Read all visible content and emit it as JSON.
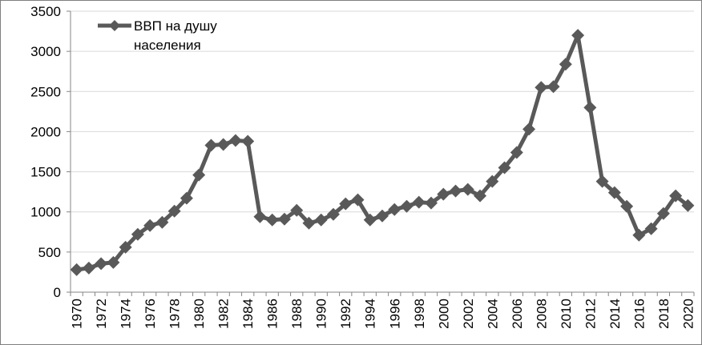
{
  "chart_data": {
    "type": "line",
    "legend": {
      "position": "top-left",
      "lines": [
        "ВВП на душу",
        "населения"
      ]
    },
    "series": [
      {
        "name": "ВВП на душу населения",
        "color": "#595959",
        "marker": "diamond",
        "x": [
          1970,
          1971,
          1972,
          1973,
          1974,
          1975,
          1976,
          1977,
          1978,
          1979,
          1980,
          1981,
          1982,
          1983,
          1984,
          1985,
          1986,
          1987,
          1988,
          1989,
          1990,
          1991,
          1992,
          1993,
          1994,
          1995,
          1996,
          1997,
          1998,
          1999,
          2000,
          2001,
          2002,
          2003,
          2004,
          2005,
          2006,
          2007,
          2008,
          2009,
          2010,
          2011,
          2012,
          2013,
          2014,
          2015,
          2016,
          2017,
          2018,
          2019,
          2020
        ],
        "values": [
          280,
          300,
          355,
          370,
          560,
          720,
          830,
          870,
          1010,
          1170,
          1460,
          1830,
          1840,
          1890,
          1880,
          940,
          900,
          910,
          1020,
          860,
          900,
          970,
          1100,
          1150,
          900,
          950,
          1030,
          1070,
          1120,
          1110,
          1220,
          1260,
          1280,
          1200,
          1380,
          1550,
          1740,
          2030,
          2550,
          2560,
          2840,
          3200,
          2300,
          1380,
          1240,
          1070,
          710,
          790,
          980,
          1200,
          1080
        ]
      }
    ],
    "x_ticks": [
      "1970",
      "1972",
      "1974",
      "1976",
      "1978",
      "1980",
      "1982",
      "1984",
      "1986",
      "1988",
      "1990",
      "1992",
      "1994",
      "1996",
      "1998",
      "2000",
      "2002",
      "2004",
      "2006",
      "2008",
      "2010",
      "2012",
      "2014",
      "2016",
      "2018",
      "2020"
    ],
    "y_ticks": [
      "0",
      "500",
      "1000",
      "1500",
      "2000",
      "2500",
      "3000",
      "3500"
    ],
    "ylim": [
      0,
      3500
    ],
    "xlim": [
      1970,
      2020
    ],
    "grid": "horizontal"
  }
}
